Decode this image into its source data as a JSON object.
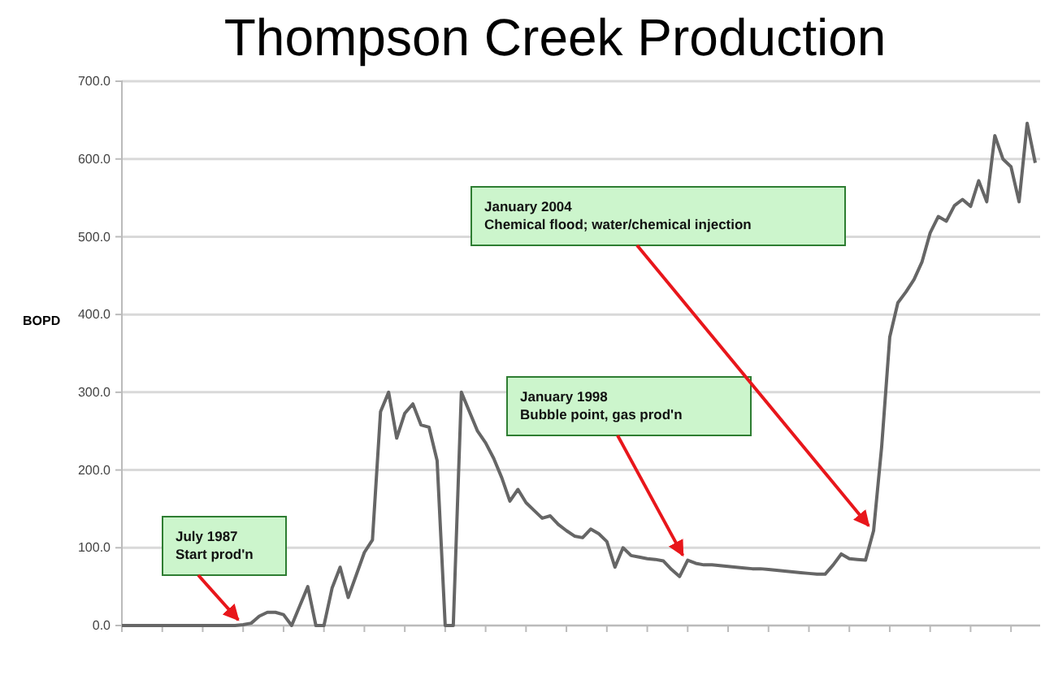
{
  "chart_data": {
    "type": "line",
    "title": "Thompson Creek Production",
    "ylabel": "BOPD",
    "categories": [
      null,
      null,
      null,
      null,
      null,
      null,
      null,
      null,
      null,
      null,
      null,
      null,
      null,
      null,
      null,
      null,
      null,
      null,
      null,
      null,
      null,
      null,
      null,
      null,
      null,
      null,
      null,
      null,
      null,
      null,
      null,
      null,
      null,
      null,
      null,
      null,
      null,
      null,
      null,
      null,
      null,
      null,
      null,
      null,
      null,
      null,
      null,
      null,
      null,
      null,
      null,
      null,
      null,
      null,
      null,
      null,
      null,
      null,
      null,
      null,
      null,
      null,
      null,
      null,
      null,
      null,
      null,
      null,
      null,
      null,
      null,
      null,
      null,
      null,
      null,
      null,
      null,
      null,
      null,
      null,
      null,
      null,
      null,
      null,
      null,
      null,
      null,
      null,
      null,
      null,
      null,
      null,
      null,
      null,
      null,
      null,
      null,
      null,
      null,
      null,
      null,
      null,
      null,
      null,
      null,
      null,
      null,
      null,
      null,
      null,
      null,
      null,
      null,
      null
    ],
    "series": [
      {
        "color": "#666666",
        "values": [
          0,
          0,
          0,
          0,
          0,
          0,
          0,
          0,
          0,
          0,
          0,
          0,
          0,
          0,
          0,
          1,
          3,
          12,
          17,
          17,
          14,
          0,
          25,
          50,
          0,
          0,
          48,
          75,
          36,
          65,
          94,
          110,
          275,
          300,
          241,
          273,
          285,
          258,
          255,
          212,
          0,
          0,
          300,
          275,
          250,
          235,
          215,
          190,
          160,
          175,
          158,
          148,
          138,
          141,
          130,
          122,
          115,
          113,
          124,
          118,
          108,
          75,
          100,
          90,
          88,
          86,
          85,
          83,
          72,
          63,
          84,
          80,
          78,
          78,
          77,
          76,
          75,
          74,
          73,
          73,
          72,
          71,
          70,
          69,
          68,
          67,
          66,
          66,
          78,
          92,
          86,
          85,
          84,
          122,
          230,
          371,
          415,
          429,
          445,
          468,
          505,
          526,
          520,
          540,
          548,
          539,
          572,
          545,
          630,
          600,
          590,
          545,
          646,
          595
        ]
      }
    ],
    "ylim": [
      0,
      700
    ],
    "yticks": [
      {
        "value": 0,
        "label": "0.0"
      },
      {
        "value": 100,
        "label": "100.0"
      },
      {
        "value": 200,
        "label": "200.0"
      },
      {
        "value": 300,
        "label": "300.0"
      },
      {
        "value": 400,
        "label": "400.0"
      },
      {
        "value": 500,
        "label": "500.0"
      },
      {
        "value": 600,
        "label": "600.0"
      },
      {
        "value": 700,
        "label": "700.0"
      }
    ],
    "grid": "y",
    "tick_labels": "y",
    "marker": "none",
    "line_style": "solid",
    "annotations": [
      "July 1987\nStart prod'n",
      "January 1998\nBubble point, gas prod'n",
      "January 2004\nChemical flood; water/chemical injection"
    ]
  }
}
